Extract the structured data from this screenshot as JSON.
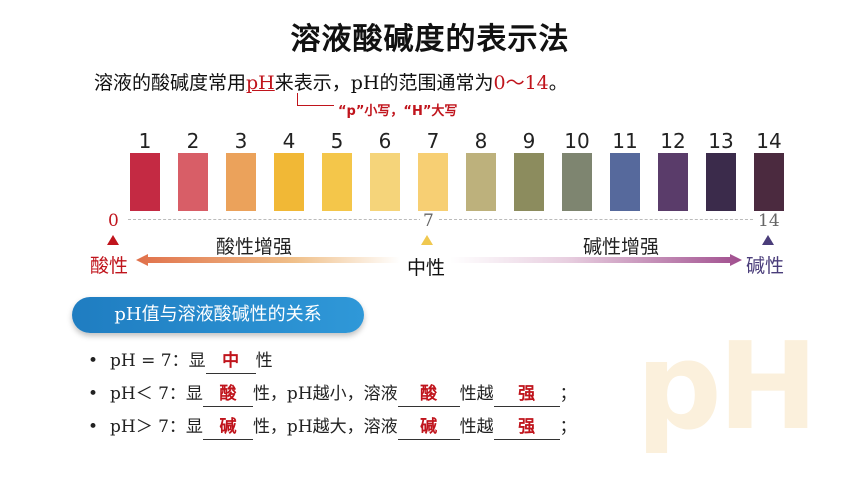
{
  "title": "溶液酸碱度的表示法",
  "intro": {
    "part1": "溶液的酸碱度常用",
    "ph": "pH",
    "part2": "来表示，pH的范围通常为",
    "range": "0～14",
    "part3": "。"
  },
  "note": "“p”小写，“H”大写",
  "scale": {
    "ticks": [
      "1",
      "2",
      "3",
      "4",
      "5",
      "6",
      "7",
      "8",
      "9",
      "10",
      "11",
      "12",
      "13",
      "14"
    ],
    "colors": [
      "#c42a43",
      "#d85e67",
      "#eba25b",
      "#f1b836",
      "#f4c64a",
      "#f5d47a",
      "#f7cf73",
      "#bdb17c",
      "#8c8c5e",
      "#7e8570",
      "#56699c",
      "#5a3c6a",
      "#3b2b4b",
      "#4b2a3f"
    ]
  },
  "axis": {
    "zero": "0",
    "seven": "7",
    "fourteen": "14"
  },
  "labels": {
    "acid_stronger": "酸性增强",
    "base_stronger": "碱性增强",
    "acidic": "酸性",
    "neutral": "中性",
    "basic": "碱性"
  },
  "section_pill": "pH值与溶液酸碱性的关系",
  "rules": [
    {
      "bullet": "•",
      "a": "pH = 7：显",
      "b1": "中",
      "c": "性"
    },
    {
      "bullet": "•",
      "a": "pH＜ 7：显",
      "b1": "酸",
      "c": "性，pH越小，溶液",
      "b2": "酸",
      "d": "性越",
      "b3": "强",
      "e": "；"
    },
    {
      "bullet": "•",
      "a": "pH＞ 7：显",
      "b1": "碱",
      "c": "性，pH越大，溶液",
      "b2": "碱",
      "d": "性越",
      "b3": "强",
      "e": "；"
    }
  ],
  "watermark": "pH",
  "colors": {
    "accent_red": "#c0141c",
    "pill_blue": "#1f7dc1",
    "neutral_yellow": "#f0c850",
    "basic_purple": "#4a3d7a"
  }
}
